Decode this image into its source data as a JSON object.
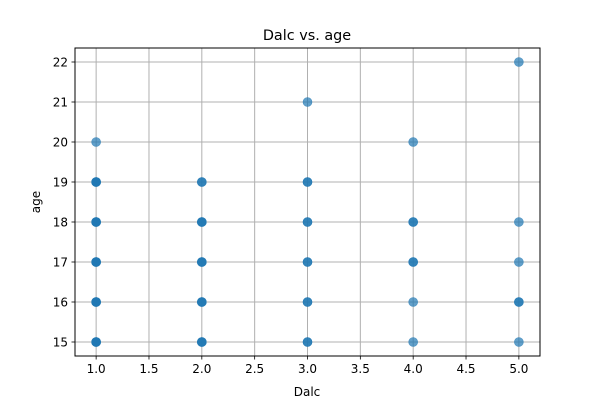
{
  "chart_data": {
    "type": "scatter",
    "title": "Dalc vs. age",
    "xlabel": "Dalc",
    "ylabel": "age",
    "xlim": [
      0.8,
      5.2
    ],
    "ylim": [
      14.65,
      22.35
    ],
    "xticks": [
      1.0,
      1.5,
      2.0,
      2.5,
      3.0,
      3.5,
      4.0,
      4.5,
      5.0
    ],
    "xtick_labels": [
      "1.0",
      "1.5",
      "2.0",
      "2.5",
      "3.0",
      "3.5",
      "4.0",
      "4.5",
      "5.0"
    ],
    "yticks": [
      15,
      16,
      17,
      18,
      19,
      20,
      21,
      22
    ],
    "ytick_labels": [
      "15",
      "16",
      "17",
      "18",
      "19",
      "20",
      "21",
      "22"
    ],
    "grid": true,
    "marker_color": "#1f77b4",
    "marker_alpha": 0.7,
    "points": [
      {
        "x": 1,
        "y": 15,
        "n": 4
      },
      {
        "x": 1,
        "y": 16,
        "n": 4
      },
      {
        "x": 1,
        "y": 17,
        "n": 4
      },
      {
        "x": 1,
        "y": 18,
        "n": 4
      },
      {
        "x": 1,
        "y": 19,
        "n": 4
      },
      {
        "x": 1,
        "y": 20,
        "n": 1
      },
      {
        "x": 2,
        "y": 15,
        "n": 3
      },
      {
        "x": 2,
        "y": 16,
        "n": 3
      },
      {
        "x": 2,
        "y": 17,
        "n": 3
      },
      {
        "x": 2,
        "y": 18,
        "n": 3
      },
      {
        "x": 2,
        "y": 19,
        "n": 2
      },
      {
        "x": 3,
        "y": 15,
        "n": 2
      },
      {
        "x": 3,
        "y": 16,
        "n": 2
      },
      {
        "x": 3,
        "y": 17,
        "n": 2
      },
      {
        "x": 3,
        "y": 18,
        "n": 2
      },
      {
        "x": 3,
        "y": 19,
        "n": 2
      },
      {
        "x": 3,
        "y": 21,
        "n": 1
      },
      {
        "x": 4,
        "y": 15,
        "n": 1
      },
      {
        "x": 4,
        "y": 16,
        "n": 1
      },
      {
        "x": 4,
        "y": 17,
        "n": 2
      },
      {
        "x": 4,
        "y": 18,
        "n": 2
      },
      {
        "x": 4,
        "y": 20,
        "n": 1
      },
      {
        "x": 5,
        "y": 15,
        "n": 1
      },
      {
        "x": 5,
        "y": 16,
        "n": 2
      },
      {
        "x": 5,
        "y": 17,
        "n": 1
      },
      {
        "x": 5,
        "y": 18,
        "n": 1
      },
      {
        "x": 5,
        "y": 22,
        "n": 1
      }
    ]
  }
}
